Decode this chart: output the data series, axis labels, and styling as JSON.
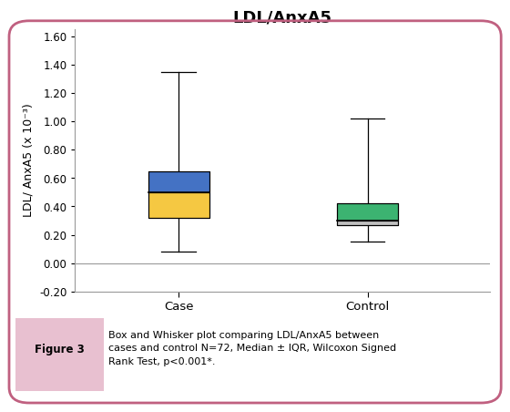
{
  "title": "LDL/AnxA5",
  "ylabel": "LDL/ AnxA5 (x 10⁻³)",
  "ylim": [
    -0.2,
    1.65
  ],
  "yticks": [
    -0.2,
    0.0,
    0.2,
    0.4,
    0.6,
    0.8,
    1.0,
    1.2,
    1.4,
    1.6
  ],
  "ytick_labels": [
    "-0.20",
    "0.00",
    "0.20",
    "0.40",
    "0.60",
    "0.80",
    "1.00",
    "1.20",
    "1.40",
    "1.60"
  ],
  "categories": [
    "Case",
    "Control"
  ],
  "boxes": [
    {
      "label": "Case",
      "whisker_low": 0.08,
      "q1": 0.32,
      "median": 0.5,
      "q3": 0.65,
      "whisker_high": 1.35,
      "color_lower": "#F5C842",
      "color_upper": "#4472C4"
    },
    {
      "label": "Control",
      "whisker_low": 0.15,
      "q1": 0.27,
      "median": 0.3,
      "q3": 0.42,
      "whisker_high": 1.02,
      "color_lower": "#C0C0C0",
      "color_upper": "#3CB371"
    }
  ],
  "box_width": 0.32,
  "title_fontsize": 13,
  "label_fontsize": 9,
  "tick_fontsize": 8.5,
  "figure_caption_label": "Figure 3",
  "caption_text": "Box and Whisker plot comparing LDL/AnxA5 between\ncases and control N=72, Median ± IQR, Wilcoxon Signed\nRank Test, p<0.001*.",
  "border_color": "#C06080",
  "fig_label_bg": "#E8C0D0",
  "caption_bg": "#FFFFFF",
  "background_color": "#FFFFFF"
}
